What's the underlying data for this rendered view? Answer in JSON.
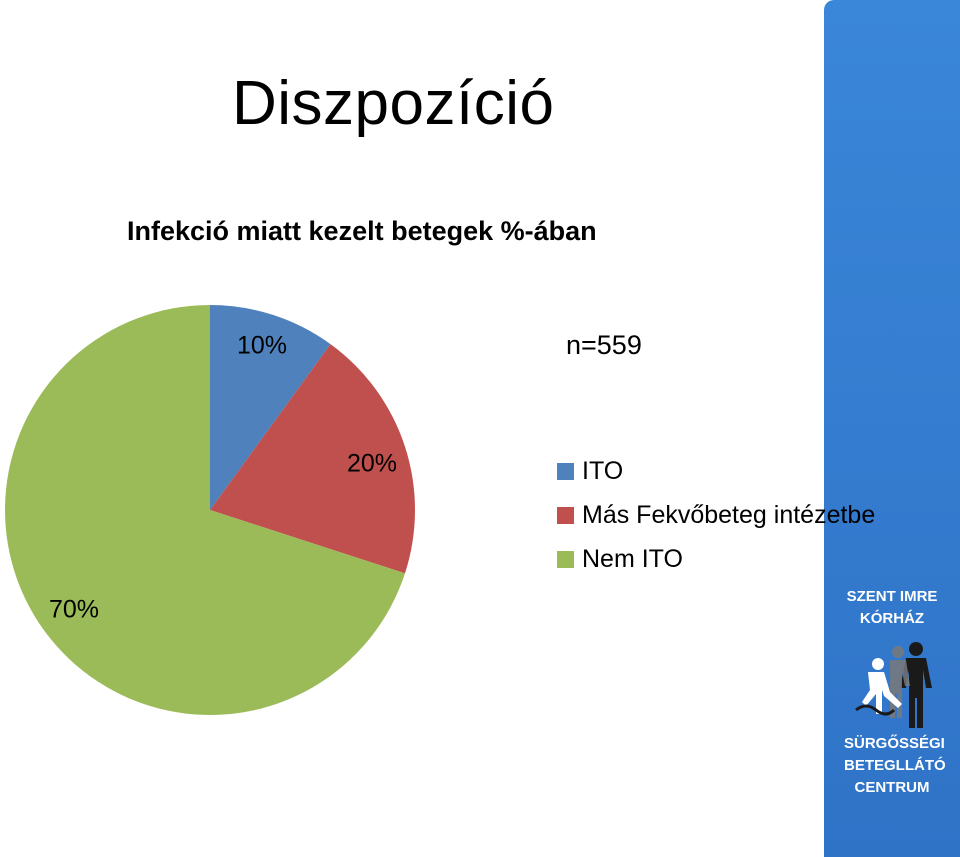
{
  "slide": {
    "title": "Diszpozíció",
    "n_label": "n=559"
  },
  "chart_data": {
    "type": "pie",
    "title": "Infekció miatt kezelt betegek %-ában",
    "categories": [
      "ITO",
      "Más Fekvőbeteg intézetbe",
      "Nem ITO"
    ],
    "values": [
      10,
      20,
      70
    ],
    "data_labels": [
      "10%",
      "20%",
      "70%"
    ],
    "colors": [
      "#4f81bd",
      "#c0504d",
      "#9bbb59"
    ],
    "legend_position": "right"
  },
  "logo": {
    "top_text": "SZENT IMRE KÓRHÁZ",
    "bottom_text": "SÜRGŐSSÉGI BETEGLLÁTÓ CENTRUM",
    "panel_color": "#3a86d8"
  }
}
